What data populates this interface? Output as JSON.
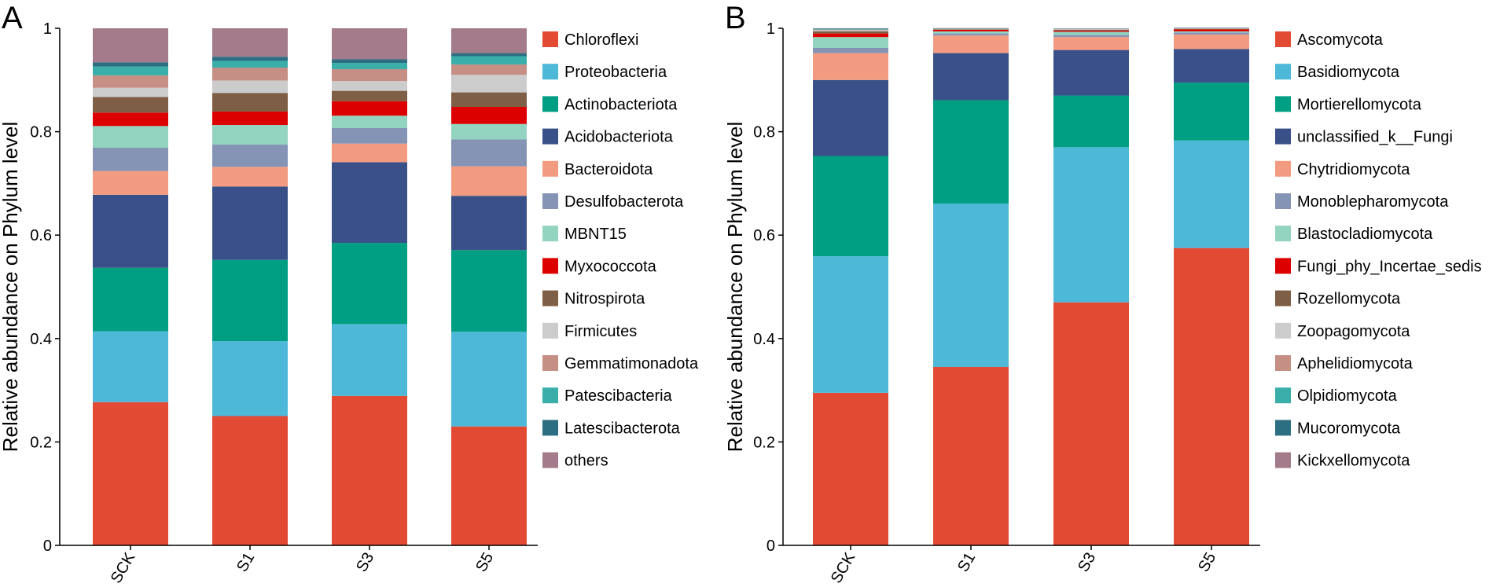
{
  "chart_data": [
    {
      "panel": "A",
      "type": "bar",
      "stacked": true,
      "ylabel": "Relative abundance on Phylum level",
      "ylim": [
        0,
        1
      ],
      "yticks": [
        "0",
        "0.2",
        "0.4",
        "0.6",
        "0.8",
        "1"
      ],
      "categories": [
        "SCK",
        "S1",
        "S3",
        "S5"
      ],
      "legend_position": "right",
      "series": [
        {
          "name": "Chloroflexi",
          "color": "#e34a33",
          "values": [
            0.277,
            0.25,
            0.289,
            0.23
          ]
        },
        {
          "name": "Proteobacteria",
          "color": "#4db8d8",
          "values": [
            0.137,
            0.145,
            0.139,
            0.183
          ]
        },
        {
          "name": "Actinobacteriota",
          "color": "#009e82",
          "values": [
            0.123,
            0.157,
            0.157,
            0.158
          ]
        },
        {
          "name": "Acidobacteriota",
          "color": "#3a5088",
          "values": [
            0.141,
            0.142,
            0.156,
            0.105
          ]
        },
        {
          "name": "Bacteroidota",
          "color": "#f39b80",
          "values": [
            0.046,
            0.038,
            0.036,
            0.057
          ]
        },
        {
          "name": "Desulfobacterota",
          "color": "#8593b5",
          "values": [
            0.045,
            0.043,
            0.03,
            0.052
          ]
        },
        {
          "name": "MBNT15",
          "color": "#92d4bf",
          "values": [
            0.042,
            0.038,
            0.024,
            0.03
          ]
        },
        {
          "name": "Myxococcota",
          "color": "#dd0000",
          "values": [
            0.026,
            0.026,
            0.028,
            0.033
          ]
        },
        {
          "name": "Nitrospirota",
          "color": "#7e5e44",
          "values": [
            0.03,
            0.036,
            0.02,
            0.028
          ]
        },
        {
          "name": "Firmicutes",
          "color": "#cccccc",
          "values": [
            0.018,
            0.024,
            0.019,
            0.034
          ]
        },
        {
          "name": "Gemmatimonadota",
          "color": "#c58f86",
          "values": [
            0.024,
            0.025,
            0.023,
            0.02
          ]
        },
        {
          "name": "Patescibacteria",
          "color": "#3aafaa",
          "values": [
            0.017,
            0.013,
            0.012,
            0.016
          ]
        },
        {
          "name": "Latescibacterota",
          "color": "#2d6f82",
          "values": [
            0.008,
            0.008,
            0.007,
            0.006
          ]
        },
        {
          "name": "others",
          "color": "#a37b8b",
          "values": [
            0.066,
            0.055,
            0.06,
            0.048
          ]
        }
      ]
    },
    {
      "panel": "B",
      "type": "bar",
      "stacked": true,
      "ylabel": "Relative abundance on Phylum level",
      "ylim": [
        0,
        1
      ],
      "yticks": [
        "0",
        "0.2",
        "0.4",
        "0.6",
        "0.8",
        "1"
      ],
      "categories": [
        "SCK",
        "S1",
        "S3",
        "S5"
      ],
      "legend_position": "right",
      "series": [
        {
          "name": "Ascomycota",
          "color": "#e34a33",
          "values": [
            0.295,
            0.345,
            0.47,
            0.575
          ]
        },
        {
          "name": "Basidiomycota",
          "color": "#4db8d8",
          "values": [
            0.264,
            0.316,
            0.3,
            0.208
          ]
        },
        {
          "name": "Mortierellomycota",
          "color": "#009e82",
          "values": [
            0.194,
            0.2,
            0.1,
            0.112
          ]
        },
        {
          "name": "unclassified_k__Fungi",
          "color": "#3a5088",
          "values": [
            0.147,
            0.091,
            0.088,
            0.065
          ]
        },
        {
          "name": "Chytridiomycota",
          "color": "#f39b80",
          "values": [
            0.052,
            0.034,
            0.025,
            0.028
          ]
        },
        {
          "name": "Monoblepharomycota",
          "color": "#8593b5",
          "values": [
            0.01,
            0.004,
            0.004,
            0.004
          ]
        },
        {
          "name": "Blastocladiomycota",
          "color": "#92d4bf",
          "values": [
            0.021,
            0.004,
            0.006,
            0.002
          ]
        },
        {
          "name": "Fungi_phy_Incertae_sedis",
          "color": "#dd0000",
          "values": [
            0.007,
            0.003,
            0.002,
            0.004
          ]
        },
        {
          "name": "Rozellomycota",
          "color": "#7e5e44",
          "values": [
            0.004,
            0.001,
            0.002,
            0.001
          ]
        },
        {
          "name": "Zoopagomycota",
          "color": "#cccccc",
          "values": [
            0.002,
            0.0005,
            0.001,
            0.0005
          ]
        },
        {
          "name": "Aphelidiomycota",
          "color": "#c58f86",
          "values": [
            0.0015,
            0.0005,
            0.0005,
            0.0005
          ]
        },
        {
          "name": "Olpidiomycota",
          "color": "#3aafaa",
          "values": [
            0.001,
            0.0005,
            0.0005,
            0.0005
          ]
        },
        {
          "name": "Mucoromycota",
          "color": "#2d6f82",
          "values": [
            0.001,
            0.0005,
            0.0005,
            0.0005
          ]
        },
        {
          "name": "Kickxellomycota",
          "color": "#a37b8b",
          "values": [
            0.0005,
            0.0005,
            0.0005,
            0.0005
          ]
        }
      ]
    }
  ]
}
